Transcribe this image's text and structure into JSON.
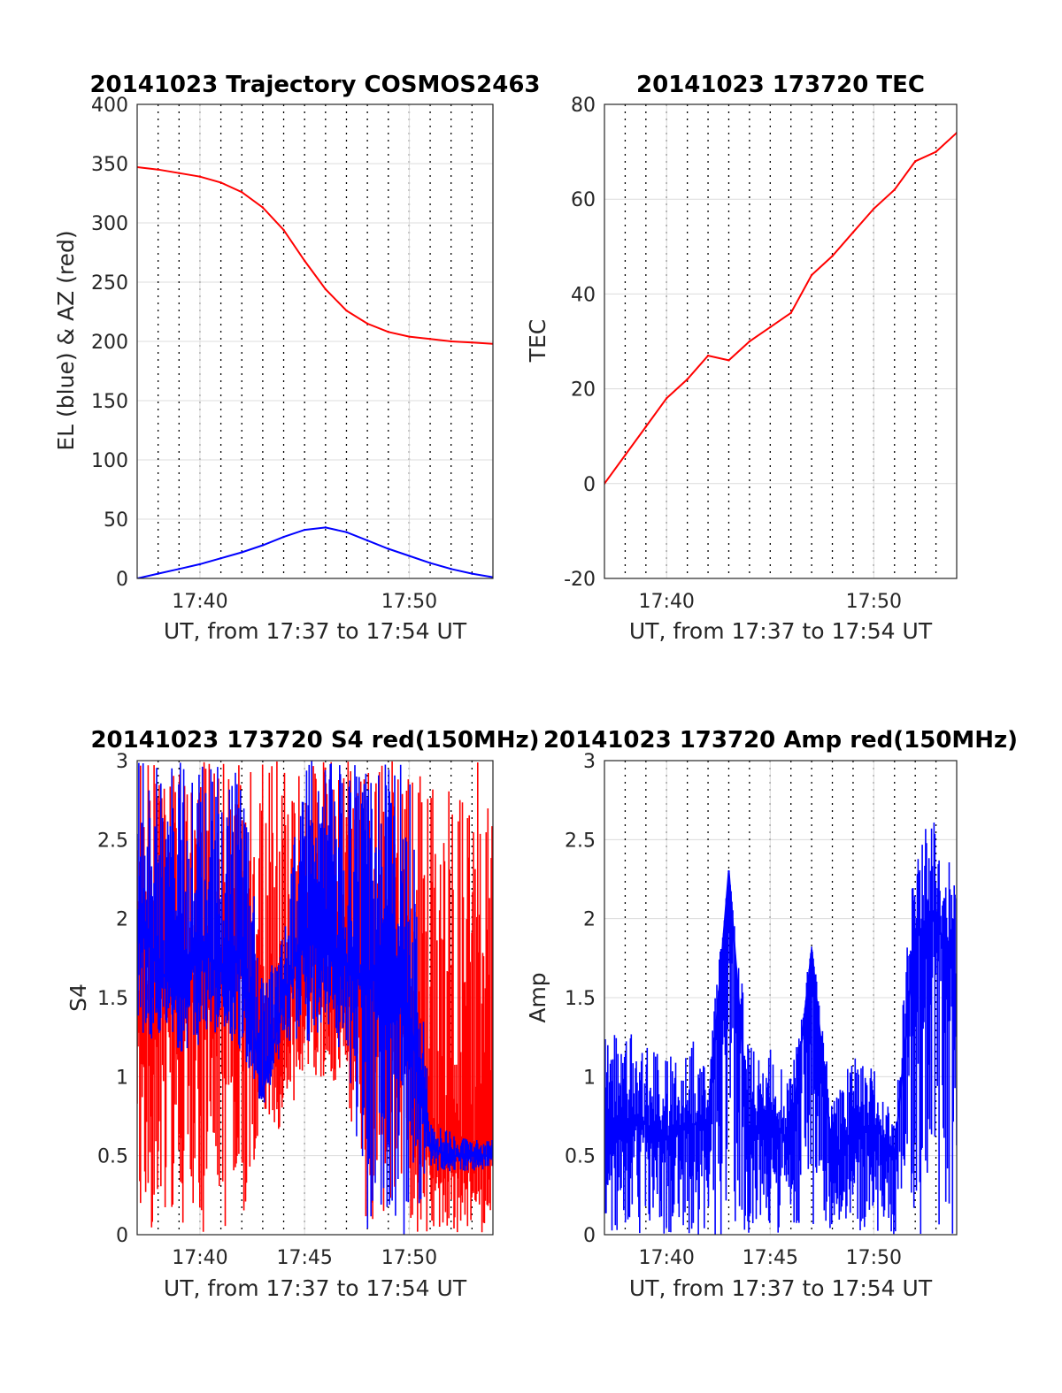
{
  "chart_data": [
    {
      "type": "line",
      "title": "20141023 Trajectory COSMOS2463",
      "xlabel": "UT, from 17:37 to 17:54 UT",
      "ylabel": "EL (blue) & AZ (red)",
      "xlim": [
        "17:37",
        "17:54"
      ],
      "ylim": [
        0,
        400
      ],
      "x_ticks": [
        "17:40",
        "17:50"
      ],
      "y_ticks": [
        "0",
        "50",
        "100",
        "150",
        "200",
        "250",
        "300",
        "350",
        "400"
      ],
      "grid": "on",
      "minor_x_grid": "dotted, 1 min",
      "series": [
        {
          "color": "#ff0000",
          "x": [
            "17:37",
            "17:38",
            "17:39",
            "17:40",
            "17:41",
            "17:42",
            "17:43",
            "17:44",
            "17:45",
            "17:46",
            "17:47",
            "17:48",
            "17:49",
            "17:50",
            "17:51",
            "17:52",
            "17:53",
            "17:54"
          ],
          "values": [
            347,
            345,
            342,
            339,
            334,
            326,
            313,
            294,
            268,
            244,
            226,
            215,
            208,
            204,
            202,
            200,
            199,
            198
          ]
        },
        {
          "color": "#0000ff",
          "x": [
            "17:37",
            "17:38",
            "17:39",
            "17:40",
            "17:41",
            "17:42",
            "17:43",
            "17:44",
            "17:45",
            "17:46",
            "17:47",
            "17:48",
            "17:49",
            "17:50",
            "17:51",
            "17:52",
            "17:53",
            "17:54"
          ],
          "values": [
            0,
            4,
            8,
            12,
            17,
            22,
            28,
            35,
            41,
            43,
            39,
            32,
            25,
            19,
            13,
            8,
            4,
            1
          ]
        }
      ]
    },
    {
      "type": "line",
      "title": "20141023 173720 TEC",
      "xlabel": "UT, from 17:37 to 17:54 UT",
      "ylabel": "TEC",
      "xlim": [
        "17:37",
        "17:54"
      ],
      "ylim": [
        -20,
        80
      ],
      "x_ticks": [
        "17:40",
        "17:50"
      ],
      "y_ticks": [
        "-20",
        "0",
        "20",
        "40",
        "60",
        "80"
      ],
      "grid": "on",
      "minor_x_grid": "dotted, 1 min",
      "series": [
        {
          "color": "#ff0000",
          "x": [
            "17:37",
            "17:38",
            "17:39",
            "17:40",
            "17:41",
            "17:42",
            "17:43",
            "17:44",
            "17:45",
            "17:46",
            "17:47",
            "17:48",
            "17:49",
            "17:50",
            "17:51",
            "17:52",
            "17:53",
            "17:54"
          ],
          "values": [
            0,
            6,
            12,
            18,
            22,
            27,
            26,
            30,
            33,
            36,
            44,
            48,
            53,
            58,
            62,
            68,
            70,
            74
          ]
        }
      ]
    },
    {
      "type": "line",
      "title": "20141023 173720 S4 red(150MHz)",
      "xlabel": "UT, from 17:37 to 17:54 UT",
      "ylabel": "S4",
      "xlim": [
        "17:37",
        "17:54"
      ],
      "ylim": [
        0,
        3
      ],
      "x_ticks": [
        "17:40",
        "17:45",
        "17:50"
      ],
      "y_ticks": [
        "0",
        "0.5",
        "1",
        "1.5",
        "2",
        "2.5",
        "3"
      ],
      "grid": "on",
      "minor_x_grid": "dotted, 1 min",
      "series": [
        {
          "color": "#ff0000",
          "x": [
            "17:37",
            "17:38",
            "17:39",
            "17:40",
            "17:41",
            "17:42",
            "17:43",
            "17:44",
            "17:45",
            "17:46",
            "17:47",
            "17:48",
            "17:49",
            "17:50",
            "17:51",
            "17:52",
            "17:53",
            "17:54"
          ],
          "values": [
            1.5,
            1.6,
            1.5,
            1.7,
            1.7,
            1.8,
            1.0,
            1.4,
            1.8,
            1.7,
            1.6,
            1.5,
            1.6,
            1.3,
            0.55,
            0.55,
            0.52,
            0.5
          ],
          "range": [
            [
              0,
              3
            ],
            [
              0,
              3
            ],
            [
              0,
              3
            ],
            [
              0,
              3
            ],
            [
              0,
              3
            ],
            [
              0,
              3
            ],
            [
              0.8,
              3
            ],
            [
              0.6,
              3
            ],
            [
              1.0,
              3
            ],
            [
              1.0,
              3
            ],
            [
              0.9,
              3
            ],
            [
              0,
              3
            ],
            [
              0,
              3
            ],
            [
              0,
              3
            ],
            [
              0,
              3
            ],
            [
              0,
              3
            ],
            [
              0,
              3
            ],
            [
              0,
              3
            ]
          ]
        },
        {
          "color": "#0000ff",
          "x": [
            "17:37",
            "17:38",
            "17:39",
            "17:40",
            "17:41",
            "17:42",
            "17:43",
            "17:44",
            "17:45",
            "17:46",
            "17:47",
            "17:48",
            "17:49",
            "17:50",
            "17:51",
            "17:52",
            "17:53",
            "17:54"
          ],
          "values": [
            2.0,
            1.7,
            1.5,
            1.8,
            1.7,
            1.8,
            0.9,
            1.5,
            1.9,
            1.8,
            1.7,
            1.6,
            1.7,
            1.4,
            0.55,
            0.5,
            0.5,
            0.5
          ],
          "range": [
            [
              1.3,
              3
            ],
            [
              1.2,
              3
            ],
            [
              1.1,
              3
            ],
            [
              1.2,
              3
            ],
            [
              1.3,
              3
            ],
            [
              1.1,
              3
            ],
            [
              0.8,
              1.6
            ],
            [
              1.2,
              2.0
            ],
            [
              1.2,
              3
            ],
            [
              1.3,
              3
            ],
            [
              1.1,
              3
            ],
            [
              0,
              3
            ],
            [
              0,
              3
            ],
            [
              0,
              3
            ],
            [
              0.4,
              0.7
            ],
            [
              0.4,
              0.65
            ],
            [
              0.4,
              0.6
            ],
            [
              0.4,
              0.6
            ]
          ]
        }
      ]
    },
    {
      "type": "line",
      "title": "20141023 173720 Amp red(150MHz)",
      "xlabel": "UT, from 17:37 to 17:54 UT",
      "ylabel": "Amp",
      "xlim": [
        "17:37",
        "17:54"
      ],
      "ylim": [
        0,
        3
      ],
      "x_ticks": [
        "17:40",
        "17:45",
        "17:50"
      ],
      "y_ticks": [
        "0",
        "0.5",
        "1",
        "1.5",
        "2",
        "2.5",
        "3"
      ],
      "grid": "on",
      "minor_x_grid": "dotted, 1 min",
      "series": [
        {
          "color": "#0000ff",
          "x": [
            "17:37",
            "17:38",
            "17:39",
            "17:40",
            "17:41",
            "17:42",
            "17:43",
            "17:44",
            "17:45",
            "17:46",
            "17:47",
            "17:48",
            "17:49",
            "17:50",
            "17:51",
            "17:52",
            "17:53",
            "17:54"
          ],
          "values": [
            0.6,
            0.7,
            0.7,
            0.6,
            0.7,
            0.7,
            2.3,
            0.6,
            0.7,
            0.6,
            1.8,
            0.5,
            0.6,
            0.7,
            0.5,
            1.9,
            2.0,
            1.6
          ],
          "range": [
            [
              0,
              1.3
            ],
            [
              0,
              1.3
            ],
            [
              0,
              1.25
            ],
            [
              0,
              1.1
            ],
            [
              0,
              1.3
            ],
            [
              0,
              1.1
            ],
            [
              0,
              2.3
            ],
            [
              0,
              1.2
            ],
            [
              0,
              1.2
            ],
            [
              0,
              1.0
            ],
            [
              0,
              1.85
            ],
            [
              0,
              0.9
            ],
            [
              0,
              1.15
            ],
            [
              0,
              1.1
            ],
            [
              0,
              0.7
            ],
            [
              0,
              2.55
            ],
            [
              0,
              2.65
            ],
            [
              0,
              2.2
            ]
          ]
        }
      ]
    }
  ]
}
